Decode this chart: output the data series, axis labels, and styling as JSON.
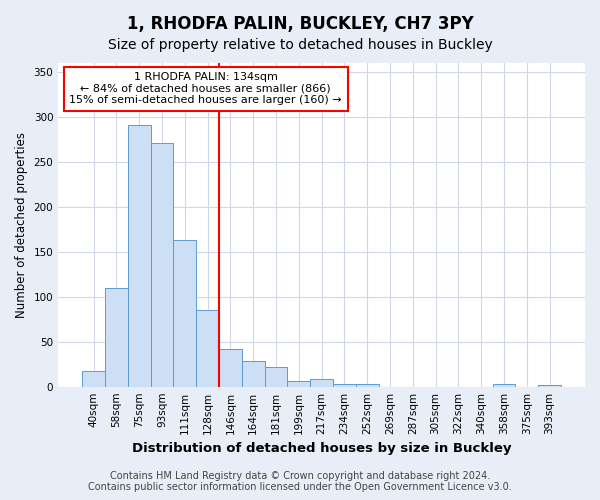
{
  "title": "1, RHODFA PALIN, BUCKLEY, CH7 3PY",
  "subtitle": "Size of property relative to detached houses in Buckley",
  "xlabel": "Distribution of detached houses by size in Buckley",
  "ylabel": "Number of detached properties",
  "categories": [
    "40sqm",
    "58sqm",
    "75sqm",
    "93sqm",
    "111sqm",
    "128sqm",
    "146sqm",
    "164sqm",
    "181sqm",
    "199sqm",
    "217sqm",
    "234sqm",
    "252sqm",
    "269sqm",
    "287sqm",
    "305sqm",
    "322sqm",
    "340sqm",
    "358sqm",
    "375sqm",
    "393sqm"
  ],
  "values": [
    17,
    110,
    291,
    271,
    163,
    85,
    42,
    29,
    22,
    6,
    8,
    3,
    3,
    0,
    0,
    0,
    0,
    0,
    3,
    0,
    2
  ],
  "bar_color": "#ccdff5",
  "bar_edge_color": "#5b9bd5",
  "red_line_x": 5.5,
  "annotation_line1": "1 RHODFA PALIN: 134sqm",
  "annotation_line2": "← 84% of detached houses are smaller (866)",
  "annotation_line3": "15% of semi-detached houses are larger (160) →",
  "ylim": [
    0,
    360
  ],
  "yticks": [
    0,
    50,
    100,
    150,
    200,
    250,
    300,
    350
  ],
  "footer_line1": "Contains HM Land Registry data © Crown copyright and database right 2024.",
  "footer_line2": "Contains public sector information licensed under the Open Government Licence v3.0.",
  "fig_bg_color": "#e8eef7",
  "plot_bg_color": "#ffffff",
  "grid_color": "#d0d8e8",
  "title_fontsize": 12,
  "subtitle_fontsize": 10,
  "xlabel_fontsize": 9.5,
  "ylabel_fontsize": 8.5,
  "tick_fontsize": 7.5,
  "annotation_fontsize": 8,
  "footer_fontsize": 7
}
